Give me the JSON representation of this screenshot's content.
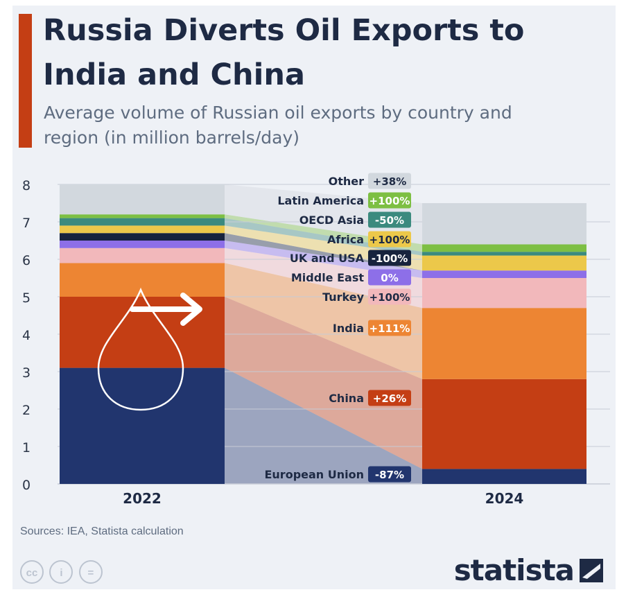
{
  "title": "Russia Diverts Oil Exports to India and China",
  "subtitle": "Average volume of Russian oil exports by country and region (in million barrels/day)",
  "source": "Sources: IEA, Statista calculation",
  "brand": "statista",
  "license_icons": [
    "creative-commons-icon",
    "attribution-icon",
    "no-derivatives-icon"
  ],
  "colors": {
    "accent": "#c43e14",
    "background": "#eef1f6",
    "title": "#1e2a44",
    "grid": "#c7ccd6"
  },
  "license_labels": [
    "cc",
    "i",
    "="
  ],
  "chart_data": {
    "type": "bar",
    "stacked": true,
    "categories": [
      "2022",
      "2024"
    ],
    "ylim": [
      0,
      8
    ],
    "yticks": [
      0,
      1,
      2,
      3,
      4,
      5,
      6,
      7,
      8
    ],
    "grid": true,
    "legend": "labels between bars",
    "series": [
      {
        "name": "European Union",
        "values": [
          3.1,
          0.4
        ],
        "change": "-87%",
        "color": "#21356e"
      },
      {
        "name": "China",
        "values": [
          1.9,
          2.4
        ],
        "change": "+26%",
        "color": "#c43e14"
      },
      {
        "name": "India",
        "values": [
          0.9,
          1.9
        ],
        "change": "+111%",
        "color": "#ed8533"
      },
      {
        "name": "Turkey",
        "values": [
          0.4,
          0.8
        ],
        "change": "+100%",
        "color": "#f2b8bb"
      },
      {
        "name": "Middle East",
        "values": [
          0.2,
          0.2
        ],
        "change": "0%",
        "color": "#8d6fe8"
      },
      {
        "name": "UK and USA",
        "values": [
          0.2,
          0.0
        ],
        "change": "-100%",
        "color": "#17233d"
      },
      {
        "name": "Africa",
        "values": [
          0.2,
          0.4
        ],
        "change": "+100%",
        "color": "#ecc84a"
      },
      {
        "name": "OECD Asia",
        "values": [
          0.2,
          0.1
        ],
        "change": "-50%",
        "color": "#3b8a7e"
      },
      {
        "name": "Latin America",
        "values": [
          0.1,
          0.2
        ],
        "change": "+100%",
        "color": "#7dbf43"
      },
      {
        "name": "Other",
        "values": [
          0.8,
          1.1
        ],
        "change": "+38%",
        "color": "#d2d8de"
      }
    ]
  }
}
